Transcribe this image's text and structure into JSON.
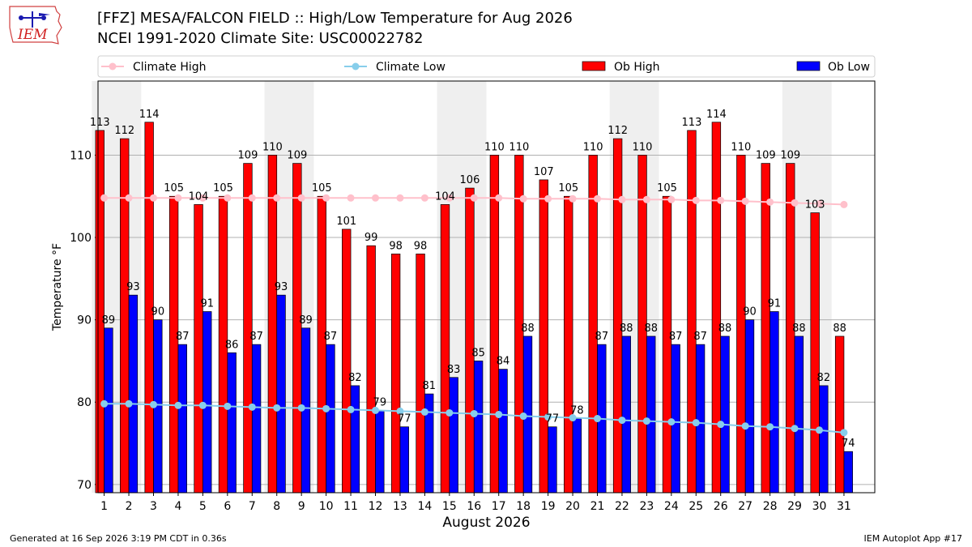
{
  "page": {
    "logo_text": "IEM",
    "title_line1": "[FFZ] MESA/FALCON FIELD :: High/Low Temperature for Aug 2026",
    "title_line2": "NCEI 1991-2020 Climate Site: USC00022782",
    "footer_left": "Generated at 16 Sep 2026 3:19 PM CDT in 0.36s",
    "footer_right": "IEM Autoplot App #17"
  },
  "chart_data": {
    "type": "bar",
    "title": "[FFZ] MESA/FALCON FIELD :: High/Low Temperature for Aug 2026",
    "subtitle": "NCEI 1991-2020 Climate Site: USC00022782",
    "xlabel": "August 2026",
    "ylabel": "Temperature °F",
    "ylim": [
      69,
      119
    ],
    "yticks": [
      70,
      80,
      90,
      100,
      110
    ],
    "grid": "horizontal",
    "legend_position": "top",
    "weekend_shading": [
      [
        1,
        2
      ],
      [
        8,
        9
      ],
      [
        15,
        16
      ],
      [
        22,
        23
      ],
      [
        29,
        30
      ]
    ],
    "categories": [
      "1",
      "2",
      "3",
      "4",
      "5",
      "6",
      "7",
      "8",
      "9",
      "10",
      "11",
      "12",
      "13",
      "14",
      "15",
      "16",
      "17",
      "18",
      "19",
      "20",
      "21",
      "22",
      "23",
      "24",
      "25",
      "26",
      "27",
      "28",
      "29",
      "30",
      "31"
    ],
    "series": [
      {
        "name": "Ob High",
        "kind": "bar",
        "color": "#ff0000",
        "values": [
          113,
          112,
          114,
          105,
          104,
          105,
          109,
          110,
          109,
          105,
          101,
          99,
          98,
          98,
          104,
          106,
          110,
          110,
          107,
          105,
          110,
          112,
          110,
          105,
          113,
          114,
          110,
          109,
          109,
          103,
          88
        ]
      },
      {
        "name": "Ob Low",
        "kind": "bar",
        "color": "#0000ff",
        "values": [
          89,
          93,
          90,
          87,
          91,
          86,
          87,
          93,
          89,
          87,
          82,
          79,
          77,
          81,
          83,
          85,
          84,
          88,
          77,
          78,
          87,
          88,
          88,
          87,
          87,
          88,
          90,
          91,
          88,
          82,
          74
        ]
      },
      {
        "name": "Climate High",
        "kind": "line",
        "color": "#ffc0cb",
        "values": [
          104.8,
          104.8,
          104.8,
          104.8,
          104.8,
          104.8,
          104.8,
          104.8,
          104.8,
          104.8,
          104.8,
          104.8,
          104.8,
          104.8,
          104.8,
          104.8,
          104.8,
          104.7,
          104.7,
          104.7,
          104.7,
          104.6,
          104.6,
          104.6,
          104.5,
          104.5,
          104.4,
          104.3,
          104.2,
          104.1,
          104.0
        ]
      },
      {
        "name": "Climate Low",
        "kind": "line",
        "color": "#87ceeb",
        "values": [
          79.8,
          79.8,
          79.7,
          79.6,
          79.6,
          79.5,
          79.4,
          79.3,
          79.3,
          79.2,
          79.1,
          79.0,
          78.9,
          78.8,
          78.7,
          78.6,
          78.5,
          78.3,
          78.2,
          78.1,
          78.0,
          77.8,
          77.7,
          77.6,
          77.5,
          77.3,
          77.1,
          77.0,
          76.8,
          76.6,
          76.3
        ]
      }
    ]
  }
}
